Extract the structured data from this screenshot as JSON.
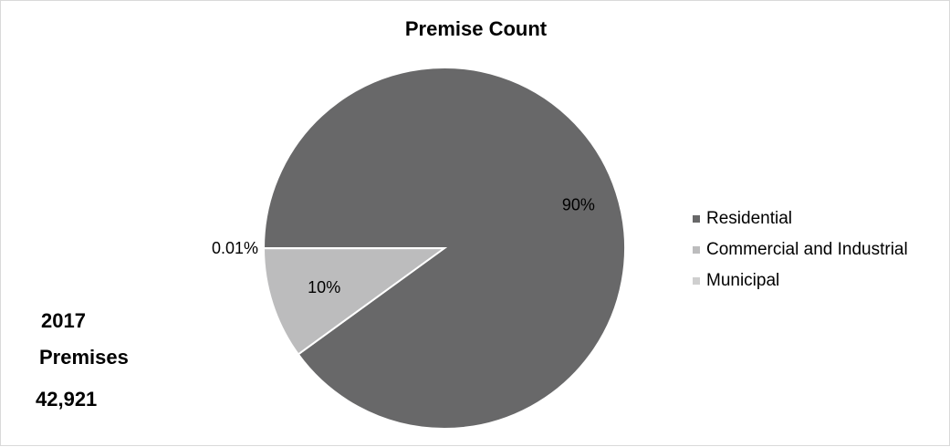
{
  "chart_data": {
    "type": "pie",
    "title": "Premise Count",
    "slices": [
      {
        "name": "Residential",
        "value": 89.99,
        "label": "90%",
        "color": "#686869"
      },
      {
        "name": "Commercial and Industrial",
        "value": 9.99,
        "label": "10%",
        "color": "#bcbcbd"
      },
      {
        "name": "Municipal",
        "value": 0.01,
        "label": "0.01%",
        "color": "#cfcfcf"
      }
    ],
    "legend_position": "right",
    "legend": [
      "Residential",
      "Commercial and Industrial",
      "Municipal"
    ]
  },
  "summary": {
    "year": "2017",
    "label": "Premises",
    "count": "42,921"
  }
}
